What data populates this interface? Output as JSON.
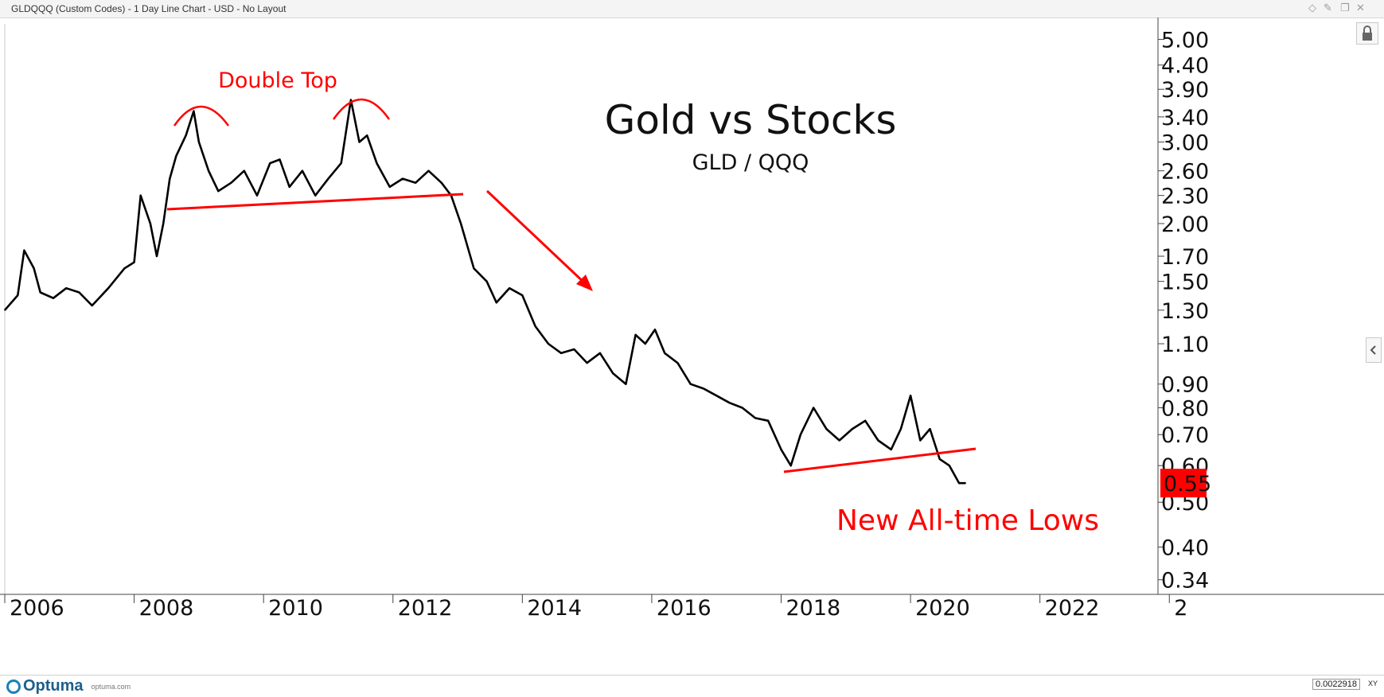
{
  "window": {
    "title": "GLDQQQ (Custom Codes) - 1 Day Line Chart - USD - No Layout",
    "controls": [
      "diamond-icon",
      "pin-icon",
      "restore-icon",
      "close-icon"
    ]
  },
  "footer": {
    "brand": "Optuma",
    "brand_url": "optuma.com",
    "precision": "0.0022918",
    "xy_label": "XY"
  },
  "colors": {
    "line": "#000000",
    "annotation": "#ff0000",
    "price_label_bg": "#ff0000"
  },
  "chart_data": {
    "type": "line",
    "title": "Gold vs Stocks",
    "subtitle": "GLD / QQQ",
    "y_scale": "log",
    "ylim": [
      0.32,
      5.4
    ],
    "xlim": [
      2006.0,
      2023.8
    ],
    "y_ticks": [
      "5.00",
      "4.40",
      "3.90",
      "3.40",
      "3.00",
      "2.60",
      "2.30",
      "2.00",
      "1.70",
      "1.50",
      "1.30",
      "1.10",
      "0.90",
      "0.80",
      "0.70",
      "0.60",
      "0.50",
      "0.40",
      "0.34"
    ],
    "x_ticks": [
      "2006",
      "2008",
      "2010",
      "2012",
      "2014",
      "2016",
      "2018",
      "2020",
      "2022",
      "2"
    ],
    "last_value": "0.55",
    "series": [
      {
        "name": "GLD / QQQ",
        "x": [
          2006.0,
          2006.2,
          2006.3,
          2006.45,
          2006.55,
          2006.75,
          2006.95,
          2007.15,
          2007.35,
          2007.6,
          2007.85,
          2008.0,
          2008.1,
          2008.25,
          2008.35,
          2008.45,
          2008.55,
          2008.65,
          2008.8,
          2008.92,
          2009.0,
          2009.15,
          2009.3,
          2009.5,
          2009.7,
          2009.9,
          2010.1,
          2010.25,
          2010.4,
          2010.6,
          2010.8,
          2011.0,
          2011.2,
          2011.35,
          2011.48,
          2011.6,
          2011.75,
          2011.95,
          2012.15,
          2012.35,
          2012.55,
          2012.75,
          2012.9,
          2013.05,
          2013.25,
          2013.45,
          2013.6,
          2013.8,
          2014.0,
          2014.2,
          2014.4,
          2014.6,
          2014.8,
          2015.0,
          2015.2,
          2015.4,
          2015.6,
          2015.75,
          2015.9,
          2016.05,
          2016.2,
          2016.4,
          2016.6,
          2016.8,
          2017.0,
          2017.2,
          2017.4,
          2017.6,
          2017.8,
          2018.0,
          2018.15,
          2018.3,
          2018.5,
          2018.7,
          2018.9,
          2019.1,
          2019.3,
          2019.5,
          2019.7,
          2019.85,
          2020.0,
          2020.15,
          2020.3,
          2020.45,
          2020.6,
          2020.75,
          2020.85
        ],
        "y": [
          1.3,
          1.4,
          1.75,
          1.6,
          1.42,
          1.38,
          1.45,
          1.42,
          1.33,
          1.45,
          1.6,
          1.65,
          2.3,
          2.0,
          1.7,
          2.0,
          2.5,
          2.8,
          3.1,
          3.5,
          3.0,
          2.6,
          2.35,
          2.45,
          2.6,
          2.3,
          2.7,
          2.75,
          2.4,
          2.6,
          2.3,
          2.5,
          2.7,
          3.7,
          3.0,
          3.1,
          2.7,
          2.4,
          2.5,
          2.45,
          2.6,
          2.45,
          2.3,
          2.0,
          1.6,
          1.5,
          1.35,
          1.45,
          1.4,
          1.2,
          1.1,
          1.05,
          1.07,
          1.0,
          1.05,
          0.95,
          0.9,
          1.15,
          1.1,
          1.18,
          1.05,
          1.0,
          0.9,
          0.88,
          0.85,
          0.82,
          0.8,
          0.76,
          0.75,
          0.65,
          0.6,
          0.7,
          0.8,
          0.72,
          0.68,
          0.72,
          0.75,
          0.68,
          0.65,
          0.72,
          0.85,
          0.68,
          0.72,
          0.62,
          0.6,
          0.55,
          0.55
        ]
      }
    ],
    "annotations": [
      {
        "text": "Double Top",
        "kind": "label"
      },
      {
        "text": "New All-time Lows",
        "kind": "label"
      }
    ]
  }
}
